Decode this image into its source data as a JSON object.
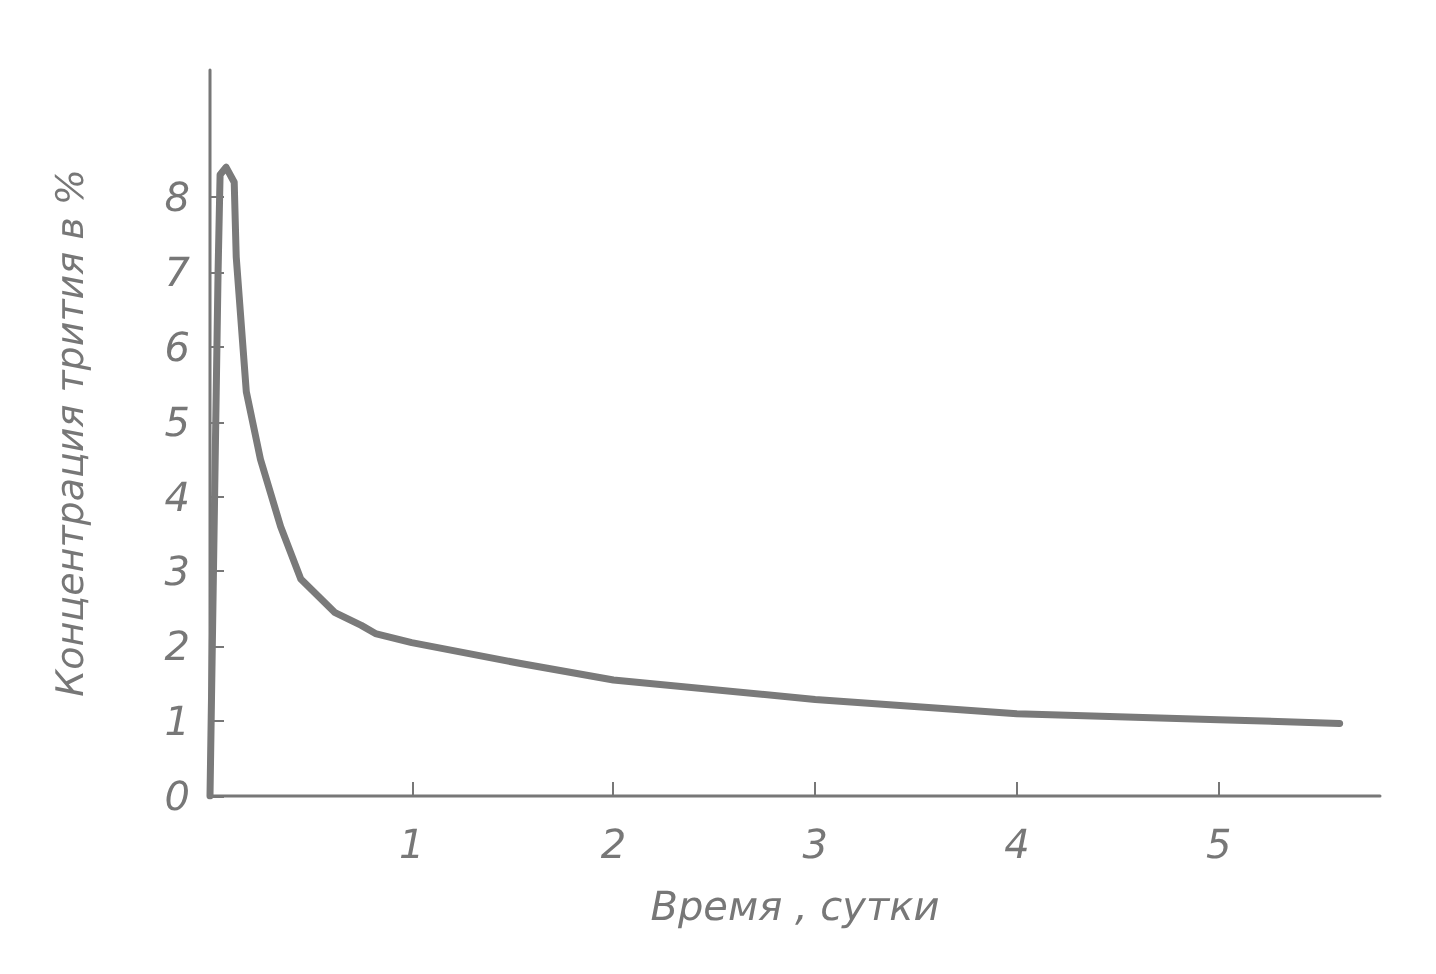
{
  "chart_data": {
    "type": "line",
    "xlabel": "Время , сутки",
    "ylabel": "Концентрация трития в %",
    "x": [
      0,
      0.02,
      0.04,
      0.05,
      0.08,
      0.12,
      0.13,
      0.18,
      0.25,
      0.35,
      0.45,
      0.62,
      0.75,
      0.82,
      1.0,
      1.54,
      2.0,
      3.0,
      4.0,
      5.0,
      5.6
    ],
    "series": [
      {
        "color": "#7a7a7a",
        "values": [
          0,
          3.5,
          7,
          8.3,
          8.4,
          8.2,
          7.2,
          5.4,
          4.5,
          3.6,
          2.9,
          2.45,
          2.28,
          2.17,
          2.05,
          1.77,
          1.55,
          1.29,
          1.1,
          1.02,
          0.97
        ]
      }
    ],
    "xlim": [
      0,
      5.8
    ],
    "xticks": [
      1,
      2,
      3,
      4,
      5
    ],
    "ylim": [
      0,
      9.7
    ],
    "yticks": [
      0,
      1,
      2,
      3,
      4,
      5,
      6,
      7,
      8
    ],
    "grid": false,
    "marker": "none",
    "line_style": "solid"
  }
}
